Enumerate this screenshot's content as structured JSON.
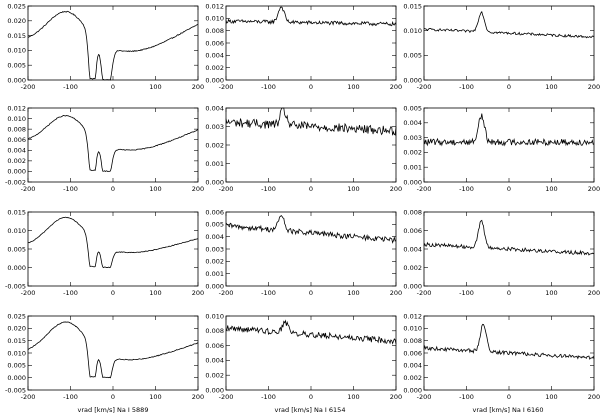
{
  "chart_data": {
    "type": "line",
    "grid": false,
    "panels": [
      {
        "row": 0,
        "col": 0,
        "xlim": [
          -200,
          200
        ],
        "ylim": [
          0,
          0.025
        ],
        "yticks": [
          0,
          0.005,
          0.01,
          0.015,
          0.02,
          0.025
        ],
        "shape": "sodium",
        "baseline": 0.012,
        "peak": 0.023,
        "peak_x": -110,
        "bottom": 0.0
      },
      {
        "row": 0,
        "col": 1,
        "xlim": [
          -200,
          200
        ],
        "ylim": [
          0,
          0.012
        ],
        "yticks": [
          0,
          0.002,
          0.004,
          0.006,
          0.008,
          0.01,
          0.012
        ],
        "shape": "emission",
        "baseline": 0.0093,
        "slope": -1.2e-06,
        "peak": 0.0118,
        "peak_x": -70,
        "noise": 0.0003
      },
      {
        "row": 0,
        "col": 2,
        "xlim": [
          -200,
          200
        ],
        "ylim": [
          0,
          0.015
        ],
        "yticks": [
          0,
          0.005,
          0.01,
          0.015
        ],
        "shape": "emission",
        "baseline": 0.0095,
        "slope": -4e-06,
        "peak": 0.0135,
        "peak_x": -65,
        "noise": 0.00025
      },
      {
        "row": 1,
        "col": 0,
        "xlim": [
          -200,
          200
        ],
        "ylim": [
          -0.002,
          0.012
        ],
        "yticks": [
          -0.002,
          0,
          0.002,
          0.004,
          0.006,
          0.008,
          0.01,
          0.012
        ],
        "shape": "sodium",
        "baseline": 0.005,
        "peak": 0.0105,
        "peak_x": -110,
        "bottom": 0.0
      },
      {
        "row": 1,
        "col": 1,
        "xlim": [
          -200,
          200
        ],
        "ylim": [
          0,
          0.004
        ],
        "yticks": [
          0,
          0.001,
          0.002,
          0.003,
          0.004
        ],
        "shape": "emission",
        "baseline": 0.003,
        "slope": -1.2e-06,
        "peak": 0.0038,
        "peak_x": -65,
        "noise": 0.00025
      },
      {
        "row": 1,
        "col": 2,
        "xlim": [
          -200,
          200
        ],
        "ylim": [
          0,
          0.005
        ],
        "yticks": [
          0,
          0.001,
          0.002,
          0.003,
          0.004,
          0.005
        ],
        "shape": "emission",
        "baseline": 0.0027,
        "slope": 0.0,
        "peak": 0.0045,
        "peak_x": -65,
        "noise": 0.00022
      },
      {
        "row": 2,
        "col": 0,
        "xlim": [
          -200,
          200
        ],
        "ylim": [
          -0.005,
          0.015
        ],
        "yticks": [
          -0.005,
          0,
          0.005,
          0.01,
          0.015
        ],
        "shape": "sodium",
        "baseline": 0.005,
        "peak": 0.0135,
        "peak_x": -110,
        "bottom": 0.0
      },
      {
        "row": 2,
        "col": 1,
        "xlim": [
          -200,
          200
        ],
        "ylim": [
          0,
          0.006
        ],
        "yticks": [
          0,
          0.001,
          0.002,
          0.003,
          0.004,
          0.005,
          0.006
        ],
        "shape": "emission",
        "baseline": 0.0043,
        "slope": -3e-06,
        "peak": 0.0055,
        "peak_x": -70,
        "noise": 0.00022
      },
      {
        "row": 2,
        "col": 2,
        "xlim": [
          -200,
          200
        ],
        "ylim": [
          0,
          0.008
        ],
        "yticks": [
          0,
          0.002,
          0.004,
          0.006,
          0.008
        ],
        "shape": "emission",
        "baseline": 0.004,
        "slope": -2.5e-06,
        "peak": 0.0068,
        "peak_x": -65,
        "noise": 0.0002
      },
      {
        "row": 3,
        "col": 0,
        "xlim": [
          -200,
          200
        ],
        "ylim": [
          -0.005,
          0.025
        ],
        "yticks": [
          -0.005,
          0,
          0.005,
          0.01,
          0.015,
          0.02,
          0.025
        ],
        "shape": "sodium",
        "baseline": 0.009,
        "peak": 0.0225,
        "peak_x": -110,
        "bottom": 0.0
      },
      {
        "row": 3,
        "col": 1,
        "xlim": [
          -200,
          200
        ],
        "ylim": [
          0,
          0.01
        ],
        "yticks": [
          0,
          0.002,
          0.004,
          0.006,
          0.008,
          0.01
        ],
        "shape": "emission",
        "baseline": 0.0075,
        "slope": -4.5e-06,
        "peak": 0.0088,
        "peak_x": -60,
        "noise": 0.0004
      },
      {
        "row": 3,
        "col": 2,
        "xlim": [
          -200,
          200
        ],
        "ylim": [
          0,
          0.012
        ],
        "yticks": [
          0,
          0.002,
          0.004,
          0.006,
          0.008,
          0.01,
          0.012
        ],
        "shape": "emission",
        "baseline": 0.006,
        "slope": -4e-06,
        "peak": 0.0105,
        "peak_x": -60,
        "noise": 0.0003
      }
    ],
    "xticks": [
      -200,
      -100,
      0,
      100,
      200
    ],
    "xlabels": [
      "vrad [km/s] Na I 5889",
      "vrad [km/s] Na I 6154",
      "vrad [km/s] Na I 6160"
    ]
  }
}
